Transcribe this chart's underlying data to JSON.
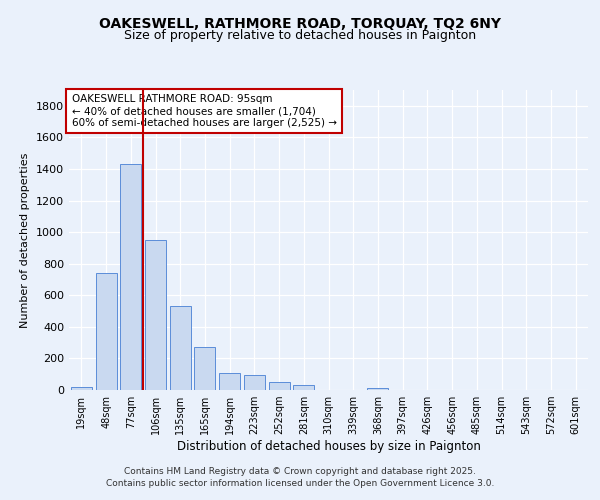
{
  "title_line1": "OAKESWELL, RATHMORE ROAD, TORQUAY, TQ2 6NY",
  "title_line2": "Size of property relative to detached houses in Paignton",
  "xlabel": "Distribution of detached houses by size in Paignton",
  "ylabel": "Number of detached properties",
  "categories": [
    "19sqm",
    "48sqm",
    "77sqm",
    "106sqm",
    "135sqm",
    "165sqm",
    "194sqm",
    "223sqm",
    "252sqm",
    "281sqm",
    "310sqm",
    "339sqm",
    "368sqm",
    "397sqm",
    "426sqm",
    "456sqm",
    "485sqm",
    "514sqm",
    "543sqm",
    "572sqm",
    "601sqm"
  ],
  "values": [
    20,
    740,
    1430,
    950,
    535,
    275,
    110,
    95,
    50,
    30,
    0,
    0,
    15,
    0,
    0,
    0,
    0,
    0,
    0,
    0,
    0
  ],
  "bar_color": "#c9d9f0",
  "bar_edge_color": "#5b8dd9",
  "vline_x": 2.5,
  "vline_color": "#c00000",
  "ann_line1": "OAKESWELL RATHMORE ROAD: 95sqm",
  "ann_line2": "← 40% of detached houses are smaller (1,704)",
  "ann_line3": "60% of semi-detached houses are larger (2,525) →",
  "annotation_box_facecolor": "#ffffff",
  "annotation_box_edgecolor": "#c00000",
  "ylim": [
    0,
    1900
  ],
  "yticks": [
    0,
    200,
    400,
    600,
    800,
    1000,
    1200,
    1400,
    1600,
    1800
  ],
  "footer1": "Contains HM Land Registry data © Crown copyright and database right 2025.",
  "footer2": "Contains public sector information licensed under the Open Government Licence 3.0.",
  "bg_color": "#eaf1fb",
  "grid_color": "#d0d8e8"
}
